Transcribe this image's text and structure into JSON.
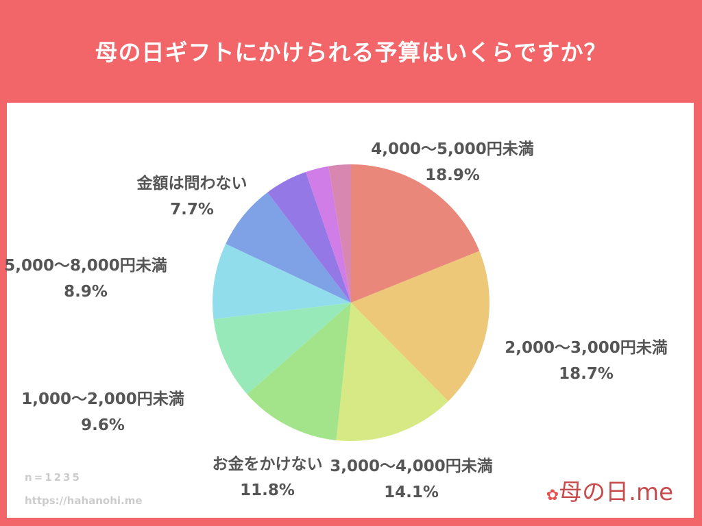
{
  "title": "母の日ギフトにかけられる予算はいくらですか？",
  "footer": {
    "n": "n=1235",
    "url": "https://hahanohi.me"
  },
  "logo": "母の日.me",
  "chart_data": {
    "type": "pie",
    "title": "母の日ギフトにかけられる予算はいくらですか？",
    "start": "12 o'clock, clockwise",
    "slices": [
      {
        "label": "4,000〜5,000円未満",
        "value": 18.9,
        "color": "#E9877A"
      },
      {
        "label": "2,000〜3,000円未満",
        "value": 18.7,
        "color": "#ECC878"
      },
      {
        "label": "3,000〜4,000円未満",
        "value": 14.1,
        "color": "#D6E985"
      },
      {
        "label": "お金をかけない",
        "value": 11.8,
        "color": "#A3E38A"
      },
      {
        "label": "1,000〜2,000円未満",
        "value": 9.6,
        "color": "#98E9B9"
      },
      {
        "label": "5,000〜8,000円未満",
        "value": 8.9,
        "color": "#92DDEB"
      },
      {
        "label": "金額は問わない",
        "value": 7.7,
        "color": "#7FA1E6"
      },
      {
        "label": "",
        "value": 5.0,
        "color": "#9479E6"
      },
      {
        "label": "",
        "value": 2.7,
        "color": "#D17DE8"
      },
      {
        "label": "",
        "value": 2.6,
        "color": "#D888B0"
      }
    ]
  }
}
